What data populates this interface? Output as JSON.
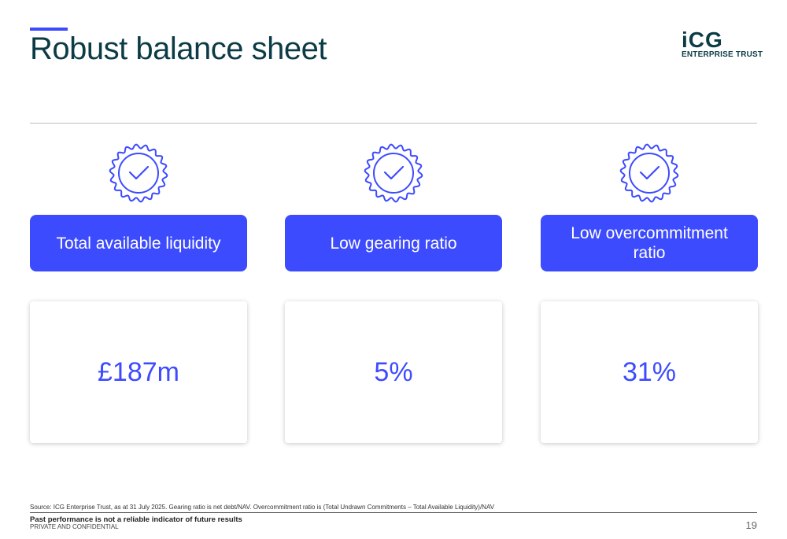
{
  "header": {
    "title": "Robust balance sheet",
    "logo": {
      "line1": "iCG",
      "line2": "ENTERPRISE TRUST"
    }
  },
  "colors": {
    "accent": "#3d4bff",
    "title": "#0c3b46"
  },
  "metrics": [
    {
      "icon": "check-badge-icon",
      "label": "Total available liquidity",
      "value": "£187m"
    },
    {
      "icon": "check-badge-icon",
      "label": "Low gearing ratio",
      "value": "5%"
    },
    {
      "icon": "check-badge-icon",
      "label": "Low overcommitment ratio",
      "value": "31%"
    }
  ],
  "footer": {
    "source": "Source: ICG Enterprise Trust, as at 31 July 2025. Gearing ratio is net debt/NAV. Overcommitment ratio is (Total Undrawn Commitments – Total Available Liquidity)/NAV",
    "disclaimer": "Past performance is not a reliable indicator of future results",
    "confidential": "PRIVATE AND CONFIDENTIAL",
    "page": "19"
  }
}
